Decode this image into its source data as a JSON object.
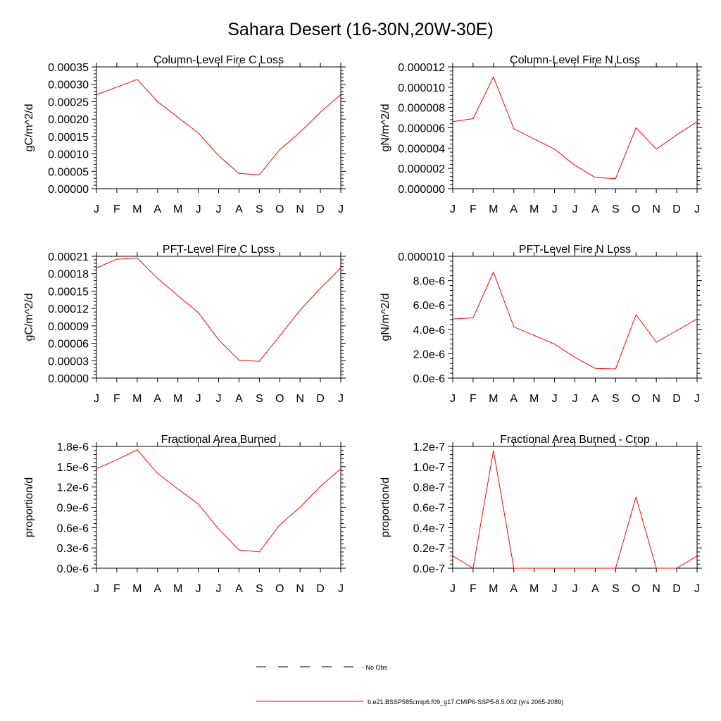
{
  "figure": {
    "title": "Sahara Desert (16-30N,20W-30E)"
  },
  "legend": {
    "entries": [
      {
        "label": "- No Obs",
        "style": "dashed",
        "color": "#000000"
      },
      {
        "label": "b.e21.BSSP585cmip6.f09_g17.CMIP6-SSP5-8.5.002 (yrs 2065-2089)",
        "style": "solid",
        "color": "#ff0000"
      }
    ]
  },
  "chart_data": [
    {
      "type": "line",
      "title": "Column-Level Fire C Loss",
      "ylabel": "gC/m^2/d",
      "x": [
        "J",
        "F",
        "M",
        "A",
        "M",
        "J",
        "J",
        "A",
        "S",
        "O",
        "N",
        "D",
        "J"
      ],
      "ylim": [
        0,
        0.00035
      ],
      "yticks": [
        "0.00000",
        "0.00005",
        "0.00010",
        "0.00015",
        "0.00020",
        "0.00025",
        "0.00030",
        "0.00035"
      ],
      "series": [
        {
          "color": "#ff0000",
          "values": [
            0.00027,
            0.000292,
            0.000314,
            0.00025,
            0.000205,
            0.00016,
            9.5e-05,
            4.4e-05,
            4e-05,
            0.000112,
            0.000162,
            0.00022,
            0.00027
          ]
        }
      ]
    },
    {
      "type": "line",
      "title": "Column-Level Fire N Loss",
      "ylabel": "gN/m^2/d",
      "x": [
        "J",
        "F",
        "M",
        "A",
        "M",
        "J",
        "J",
        "A",
        "S",
        "O",
        "N",
        "D",
        "J"
      ],
      "ylim": [
        0,
        1.2e-05
      ],
      "yticks": [
        "0.000000",
        "0.000002",
        "0.000004",
        "0.000006",
        "0.000008",
        "0.000010",
        "0.000012"
      ],
      "series": [
        {
          "color": "#ff0000",
          "values": [
            6.6e-06,
            6.9e-06,
            1.1e-05,
            5.9e-06,
            4.9e-06,
            3.9e-06,
            2.3e-06,
            1.1e-06,
            1e-06,
            6e-06,
            3.9e-06,
            5.3e-06,
            6.6e-06
          ]
        }
      ]
    },
    {
      "type": "line",
      "title": "PFT-Level Fire C Loss",
      "ylabel": "gC/m^2/d",
      "x": [
        "J",
        "F",
        "M",
        "A",
        "M",
        "J",
        "J",
        "A",
        "S",
        "O",
        "N",
        "D",
        "J"
      ],
      "ylim": [
        0,
        0.00021
      ],
      "yticks": [
        "0.00000",
        "0.00003",
        "0.00006",
        "0.00009",
        "0.00012",
        "0.00015",
        "0.00018",
        "0.00021"
      ],
      "series": [
        {
          "color": "#ff0000",
          "values": [
            0.00019,
            0.000205,
            0.000207,
            0.000172,
            0.000142,
            0.000113,
            6.6e-05,
            3.1e-05,
            2.9e-05,
            7.3e-05,
            0.000117,
            0.000155,
            0.00019
          ]
        }
      ]
    },
    {
      "type": "line",
      "title": "PFT-Level Fire N Loss",
      "ylabel": "gN/m^2/d",
      "x": [
        "J",
        "F",
        "M",
        "A",
        "M",
        "J",
        "J",
        "A",
        "S",
        "O",
        "N",
        "D",
        "J"
      ],
      "ylim": [
        0,
        1e-05
      ],
      "yticks": [
        "0.0e-6",
        "2.0e-6",
        "4.0e-6",
        "6.0e-6",
        "8.0e-6",
        "0.000010"
      ],
      "series": [
        {
          "color": "#ff0000",
          "values": [
            4.85e-06,
            4.95e-06,
            8.7e-06,
            4.2e-06,
            3.5e-06,
            2.8e-06,
            1.7e-06,
            8e-07,
            7.5e-07,
            5.2e-06,
            2.95e-06,
            3.9e-06,
            4.85e-06
          ]
        }
      ]
    },
    {
      "type": "line",
      "title": "Fractional Area Burned",
      "ylabel": "proportion/d",
      "x": [
        "J",
        "F",
        "M",
        "A",
        "M",
        "J",
        "J",
        "A",
        "S",
        "O",
        "N",
        "D",
        "J"
      ],
      "ylim": [
        0,
        1.8e-06
      ],
      "yticks": [
        "0.0e-6",
        "0.3e-6",
        "0.6e-6",
        "0.9e-6",
        "1.2e-6",
        "1.5e-6",
        "1.8e-6"
      ],
      "series": [
        {
          "color": "#ff0000",
          "values": [
            1.47e-06,
            1.6e-06,
            1.75e-06,
            1.4e-06,
            1.17e-06,
            9.5e-07,
            5.8e-07,
            2.7e-07,
            2.4e-07,
            6.4e-07,
            9e-07,
            1.21e-06,
            1.47e-06
          ]
        }
      ]
    },
    {
      "type": "line",
      "title": "Fractional Area Burned - Crop",
      "ylabel": "proportion/d",
      "x": [
        "J",
        "F",
        "M",
        "A",
        "M",
        "J",
        "J",
        "A",
        "S",
        "O",
        "N",
        "D",
        "J"
      ],
      "ylim": [
        0,
        1.2e-07
      ],
      "yticks": [
        "0.0e-7",
        "0.2e-7",
        "0.4e-7",
        "0.6e-7",
        "0.8e-7",
        "1.0e-7",
        "1.2e-7"
      ],
      "series": [
        {
          "color": "#ff0000",
          "values": [
            1.2e-08,
            0,
            1.16e-07,
            0,
            0,
            0,
            0,
            0,
            0,
            7e-08,
            0,
            0,
            1.2e-08
          ]
        }
      ]
    }
  ]
}
